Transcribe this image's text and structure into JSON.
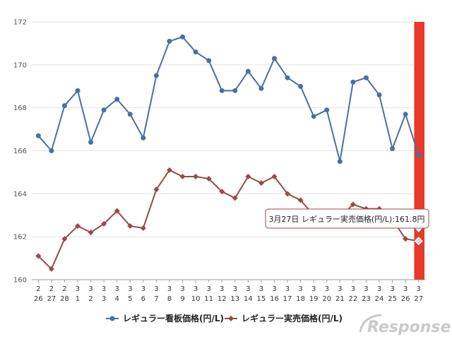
{
  "chart_data": {
    "type": "line",
    "categories": [
      [
        "2",
        "26"
      ],
      [
        "2",
        "27"
      ],
      [
        "2",
        "28"
      ],
      [
        "3",
        "1"
      ],
      [
        "3",
        "2"
      ],
      [
        "3",
        "3"
      ],
      [
        "3",
        "4"
      ],
      [
        "3",
        "5"
      ],
      [
        "3",
        "6"
      ],
      [
        "3",
        "7"
      ],
      [
        "3",
        "8"
      ],
      [
        "3",
        "9"
      ],
      [
        "3",
        "10"
      ],
      [
        "3",
        "11"
      ],
      [
        "3",
        "12"
      ],
      [
        "3",
        "13"
      ],
      [
        "3",
        "14"
      ],
      [
        "3",
        "15"
      ],
      [
        "3",
        "16"
      ],
      [
        "3",
        "17"
      ],
      [
        "3",
        "18"
      ],
      [
        "3",
        "19"
      ],
      [
        "3",
        "20"
      ],
      [
        "3",
        "21"
      ],
      [
        "3",
        "22"
      ],
      [
        "3",
        "23"
      ],
      [
        "3",
        "24"
      ],
      [
        "3",
        "25"
      ],
      [
        "3",
        "26"
      ],
      [
        "3",
        "27"
      ]
    ],
    "ylim": [
      160,
      172
    ],
    "yticks": [
      "160",
      "162",
      "164",
      "166",
      "168",
      "170",
      "172"
    ],
    "grid": "horizontal",
    "legend_position": "bottom",
    "highlight_category_index": 29,
    "series": [
      {
        "name": "レギュラー看板価格(円/L)",
        "color": "#4a6fa5",
        "marker": "circle",
        "values": [
          166.7,
          166.0,
          168.1,
          168.8,
          166.4,
          167.9,
          168.4,
          167.7,
          166.6,
          169.5,
          171.1,
          171.3,
          170.6,
          170.2,
          168.8,
          168.8,
          169.7,
          168.9,
          170.3,
          169.4,
          169.0,
          167.6,
          167.9,
          165.5,
          169.2,
          169.4,
          168.6,
          166.1,
          167.7,
          165.8
        ]
      },
      {
        "name": "レギュラー実売価格(円/L)",
        "color": "#9a4a45",
        "marker": "diamond",
        "values": [
          161.1,
          160.5,
          161.9,
          162.5,
          162.2,
          162.6,
          163.2,
          162.5,
          162.4,
          164.2,
          165.1,
          164.8,
          164.8,
          164.7,
          164.1,
          163.8,
          164.8,
          164.5,
          164.8,
          164.0,
          163.7,
          163.0,
          162.9,
          162.9,
          163.5,
          163.3,
          163.3,
          162.8,
          161.9,
          161.8
        ]
      }
    ],
    "tooltip": "3月27日 レギュラー実売価格(円/L):161.8円"
  },
  "watermark": "Response."
}
